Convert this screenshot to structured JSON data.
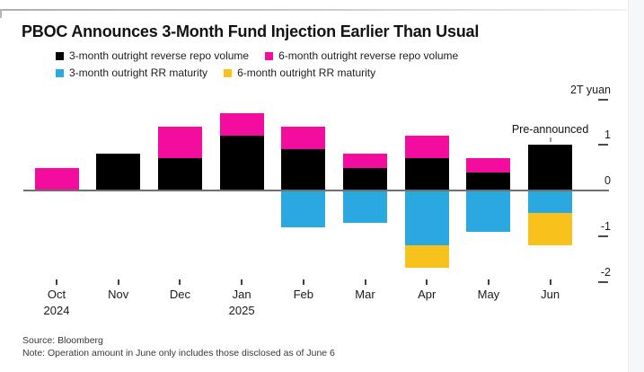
{
  "page": {
    "title": "PBOC Announces 3-Month Fund Injection Earlier Than Usual",
    "source_line": "Source: Bloomberg",
    "note_line": "Note: Operation amount in June only includes those disclosed as of June 6"
  },
  "colors": {
    "black_series": "#000000",
    "pink_series": "#f20d9e",
    "blue_series": "#2aa9e0",
    "yellow_series": "#f8c21c",
    "zero_axis": "#6f6f6f",
    "tick": "#3f3f3f"
  },
  "chart_data": {
    "type": "bar",
    "stacked": true,
    "title": "PBOC Announces 3-Month Fund Injection Earlier Than Usual",
    "ylabel": "2T yuan",
    "ylim": [
      -2,
      2
    ],
    "grid": false,
    "legend_position": "top",
    "yticks": [
      {
        "value": 2,
        "label": "2T yuan"
      },
      {
        "value": 1,
        "label": "1"
      },
      {
        "value": 0,
        "label": "0"
      },
      {
        "value": -1,
        "label": "-1"
      },
      {
        "value": -2,
        "label": "-2"
      }
    ],
    "categories": [
      {
        "label": "Oct",
        "sublabel": "2024"
      },
      {
        "label": "Nov"
      },
      {
        "label": "Dec"
      },
      {
        "label": "Jan",
        "sublabel": "2025"
      },
      {
        "label": "Feb"
      },
      {
        "label": "Mar"
      },
      {
        "label": "Apr"
      },
      {
        "label": "May"
      },
      {
        "label": "Jun"
      }
    ],
    "series": [
      {
        "name": "3-month outright reverse repo volume",
        "color": "#000000",
        "values": [
          0,
          0.8,
          0.7,
          1.2,
          0.9,
          0.5,
          0.7,
          0.4,
          1.0
        ]
      },
      {
        "name": "6-month outright reverse repo volume",
        "color": "#f20d9e",
        "values": [
          0.5,
          0,
          0.7,
          0.5,
          0.5,
          0.3,
          0.5,
          0.3,
          0
        ]
      },
      {
        "name": "3-month outright RR maturity",
        "color": "#2aa9e0",
        "values": [
          0,
          0,
          0,
          0,
          -0.8,
          -0.7,
          -1.2,
          -0.9,
          -0.5
        ]
      },
      {
        "name": "6-month outright RR maturity",
        "color": "#f8c21c",
        "values": [
          0,
          0,
          0,
          0,
          0,
          0,
          -0.5,
          0,
          -0.7
        ]
      }
    ],
    "annotation": {
      "text": "Pre-announced",
      "category_index": 8
    }
  }
}
